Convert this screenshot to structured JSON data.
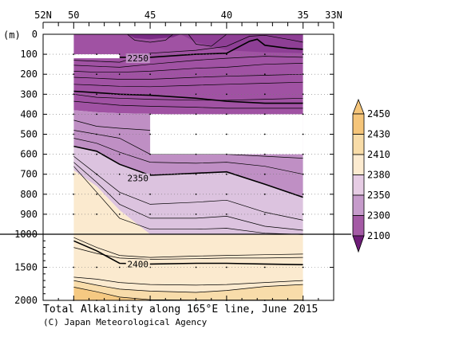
{
  "chart_data": {
    "type": "contour",
    "title": "Total Alkalinity along 165°E line, June 2015",
    "credit": "(C) Japan Meteorological Agency",
    "x_axis": {
      "ticks": [
        "52N",
        "50",
        "45",
        "40",
        "35",
        "33N"
      ],
      "tick_values": [
        52,
        50,
        45,
        40,
        35,
        33
      ],
      "range": [
        52,
        33
      ]
    },
    "y_axis": {
      "unit_label": "(m)",
      "upper_ticks": [
        "0",
        "100",
        "200",
        "300",
        "400",
        "500",
        "600",
        "700",
        "800",
        "900",
        "1000"
      ],
      "upper_values": [
        0,
        100,
        200,
        300,
        400,
        500,
        600,
        700,
        800,
        900,
        1000
      ],
      "lower_ticks": [
        "1500",
        "2000"
      ],
      "lower_values": [
        1500,
        2000
      ],
      "break_depth": 1000
    },
    "colorbar": {
      "labels": [
        "2450",
        "2430",
        "2410",
        "2380",
        "2350",
        "2300",
        "2100"
      ],
      "colors": [
        "#f5c57a",
        "#f8dca8",
        "#fcebd0",
        "#e6cce4",
        "#c69bcb",
        "#a45aa5",
        "#6e1c78"
      ]
    },
    "contour_labels": [
      {
        "text": "2250",
        "lat": 45.8,
        "depth": 120
      },
      {
        "text": "2350",
        "lat": 45.8,
        "depth": 720
      },
      {
        "text": "2400",
        "lat": 45.8,
        "depth": 1450
      }
    ],
    "missing_regions": [
      {
        "lat_from": 50,
        "lat_to": 47,
        "depth_from": 100,
        "depth_to": 120
      },
      {
        "lat_from": 45,
        "lat_to": 35,
        "depth_from": 400,
        "depth_to": 600
      }
    ],
    "station_latitudes": [
      50,
      48.5,
      47,
      45,
      42,
      40,
      37.5,
      35
    ]
  }
}
